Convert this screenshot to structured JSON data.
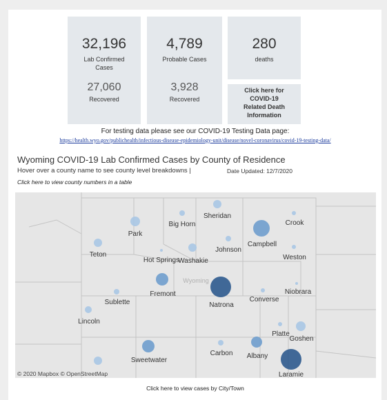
{
  "stats": [
    {
      "value": "32,196",
      "label": [
        "Lab Confirmed",
        "Cases"
      ],
      "sub_value": "27,060",
      "sub_label": "Recovered"
    },
    {
      "value": "4,789",
      "label": [
        "Probable Cases"
      ],
      "sub_value": "3,928",
      "sub_label": "Recovered"
    },
    {
      "value": "280",
      "label": [
        "deaths"
      ],
      "link": [
        "Click here for",
        "COVID-19",
        "Related Death",
        "Information"
      ]
    }
  ],
  "testing_note": "For testing data please see our COVID-19 Testing Data page:",
  "testing_link": "https://health.wyo.gov/publichealth/infectious-disease-epidemiology-unit/disease/novel-coronavirus/covid-19-testing-data/",
  "map": {
    "title": "Wyoming COVID-19 Lab Confirmed Cases by County of Residence",
    "hover_note": "Hover over a county name to see county level breakdowns |",
    "date_updated": "Date Updated: 12/7/2020",
    "table_link": "Click here to view county numbers in a table",
    "state_label": "Wyoming",
    "counties": [
      "Sheridan",
      "Big Horn",
      "Crook",
      "Park",
      "Campbell",
      "Johnson",
      "Teton",
      "Weston",
      "Hot Springs",
      "Washakie",
      "Fremont",
      "Natrona",
      "Niobrara",
      "Converse",
      "Sublette",
      "Lincoln",
      "Platte",
      "Goshen",
      "Sweetwater",
      "Carbon",
      "Albany",
      "Laramie"
    ],
    "attribution": "© 2020 Mapbox © OpenStreetMap"
  },
  "footer_link": "Click here to view cases by City/Town"
}
